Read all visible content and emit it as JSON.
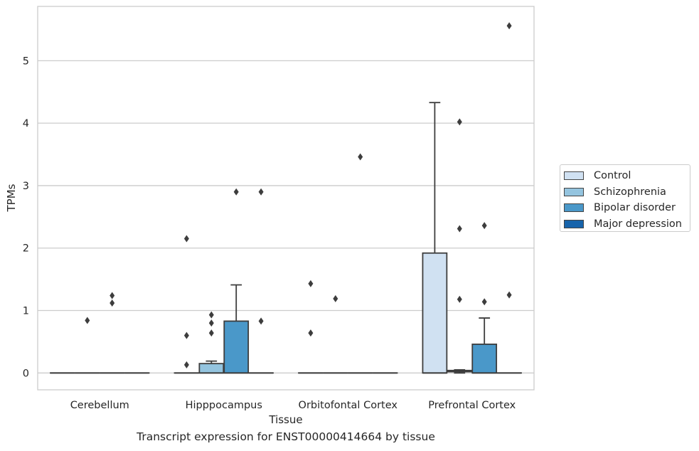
{
  "caption": "Transcript expression for ENST00000414664 by tissue",
  "chart_data": {
    "type": "boxplot",
    "xlabel": "Tissue",
    "ylabel": "TPMs",
    "ylim": [
      -0.27,
      5.87
    ],
    "yticks": [
      0,
      1,
      2,
      3,
      4,
      5
    ],
    "grid": true,
    "legend_position": "right",
    "categories": [
      "Cerebellum",
      "Hipppocampus",
      "Orbitofontal Cortex",
      "Prefrontal Cortex"
    ],
    "series": [
      {
        "name": "Control",
        "color": "#d0e1f2",
        "boxes": [
          {
            "q1": 0,
            "median": 0,
            "q3": 0,
            "whisker_low": 0,
            "whisker_high": 0,
            "outliers": []
          },
          {
            "q1": 0,
            "median": 0,
            "q3": 0,
            "whisker_low": 0,
            "whisker_high": 0,
            "outliers": [
              0.13,
              0.6,
              2.15
            ]
          },
          {
            "q1": 0,
            "median": 0,
            "q3": 0,
            "whisker_low": 0,
            "whisker_high": 0,
            "outliers": [
              0.64,
              1.43
            ]
          },
          {
            "q1": 0,
            "median": 0,
            "q3": 1.92,
            "whisker_low": 0,
            "whisker_high": 4.33,
            "outliers": []
          }
        ]
      },
      {
        "name": "Schizophrenia",
        "color": "#94c4df",
        "boxes": [
          {
            "q1": 0,
            "median": 0,
            "q3": 0,
            "whisker_low": 0,
            "whisker_high": 0,
            "outliers": [
              0.84
            ]
          },
          {
            "q1": 0,
            "median": 0,
            "q3": 0.15,
            "whisker_low": 0,
            "whisker_high": 0.19,
            "outliers": [
              0.64,
              0.8,
              0.93
            ]
          },
          {
            "q1": 0,
            "median": 0,
            "q3": 0,
            "whisker_low": 0,
            "whisker_high": 0,
            "outliers": [
              1.19
            ]
          },
          {
            "q1": 0.02,
            "median": 0.03,
            "q3": 0.04,
            "whisker_low": 0,
            "whisker_high": 0.05,
            "outliers": [
              1.18,
              2.31,
              4.02
            ]
          }
        ]
      },
      {
        "name": "Bipolar disorder",
        "color": "#4a98c9",
        "boxes": [
          {
            "q1": 0,
            "median": 0,
            "q3": 0,
            "whisker_low": 0,
            "whisker_high": 0,
            "outliers": [
              1.12,
              1.24
            ]
          },
          {
            "q1": 0,
            "median": 0,
            "q3": 0.83,
            "whisker_low": 0,
            "whisker_high": 1.41,
            "outliers": [
              2.9
            ]
          },
          {
            "q1": 0,
            "median": 0,
            "q3": 0,
            "whisker_low": 0,
            "whisker_high": 0,
            "outliers": [
              3.46
            ]
          },
          {
            "q1": 0,
            "median": 0,
            "q3": 0.46,
            "whisker_low": 0,
            "whisker_high": 0.88,
            "outliers": [
              1.14,
              2.36
            ]
          }
        ]
      },
      {
        "name": "Major depression",
        "color": "#1764ab",
        "boxes": [
          {
            "q1": 0,
            "median": 0,
            "q3": 0,
            "whisker_low": 0,
            "whisker_high": 0,
            "outliers": []
          },
          {
            "q1": 0,
            "median": 0,
            "q3": 0,
            "whisker_low": 0,
            "whisker_high": 0,
            "outliers": [
              0.83,
              2.9
            ]
          },
          {
            "q1": 0,
            "median": 0,
            "q3": 0,
            "whisker_low": 0,
            "whisker_high": 0,
            "outliers": []
          },
          {
            "q1": 0,
            "median": 0,
            "q3": 0,
            "whisker_low": 0,
            "whisker_high": 0,
            "outliers": [
              1.25,
              5.56
            ]
          }
        ]
      }
    ]
  }
}
